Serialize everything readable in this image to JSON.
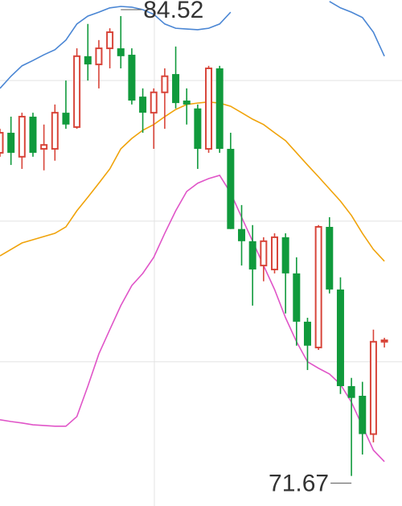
{
  "chart_data": {
    "type": "candlestick",
    "categories": [
      null,
      null,
      null,
      null,
      null,
      null,
      null,
      null,
      null,
      null,
      null,
      null,
      null,
      null,
      null,
      null,
      null,
      null,
      null,
      null,
      null,
      null,
      null,
      null,
      null,
      null,
      null,
      null,
      null,
      null,
      null,
      null,
      null,
      null,
      null,
      null
    ],
    "open": [
      80.7,
      81.26,
      80.59,
      81.71,
      80.81,
      80.81,
      81.82,
      81.42,
      83.4,
      83.17,
      83.62,
      83.62,
      83.44,
      82.27,
      81.82,
      82.39,
      82.9,
      82.16,
      81.94,
      80.81,
      83.06,
      80.81,
      78.57,
      78.23,
      77.55,
      77.44,
      78.34,
      77.33,
      75.98,
      75.26,
      78.63,
      76.88,
      74.18,
      73.91,
      72.84,
      75.42
    ],
    "high": [
      81.37,
      81.71,
      81.82,
      81.82,
      81.49,
      82.05,
      82.72,
      83.62,
      84.3,
      83.85,
      84.18,
      84.52,
      83.62,
      82.5,
      82.5,
      83.06,
      83.67,
      82.5,
      82.05,
      83.13,
      83.13,
      81.26,
      79.24,
      78.68,
      78.34,
      78.45,
      78.45,
      77.78,
      76.09,
      78.68,
      78.9,
      77.22,
      74.41,
      74.3,
      75.76,
      75.53
    ],
    "low": [
      80.59,
      80.36,
      80.25,
      80.59,
      80.21,
      80.48,
      81.37,
      81.37,
      82.72,
      82.5,
      83.06,
      83.06,
      82.05,
      81.26,
      80.81,
      81.37,
      81.94,
      81.49,
      80.25,
      80.7,
      80.7,
      78.57,
      77.55,
      76.43,
      77.11,
      77.33,
      76.21,
      75.31,
      74.63,
      75.19,
      76.77,
      73.96,
      71.67,
      72.27,
      72.61,
      75.26
    ],
    "close": [
      81.26,
      80.7,
      81.71,
      80.7,
      80.92,
      81.82,
      81.49,
      83.4,
      83.17,
      83.62,
      84.07,
      83.4,
      82.16,
      81.82,
      82.39,
      82.84,
      82.09,
      82.05,
      80.81,
      83.06,
      80.81,
      78.57,
      78.23,
      77.44,
      78.23,
      78.34,
      77.33,
      75.98,
      75.31,
      78.63,
      76.88,
      74.18,
      73.85,
      72.84,
      75.42,
      75.46
    ],
    "up_color": "#d8453a",
    "down_color": "#109a3c",
    "series": [
      {
        "color": "#4a86d4",
        "values": [
          82.5,
          82.84,
          83.13,
          83.28,
          83.44,
          83.58,
          83.85,
          84.3,
          84.52,
          84.63,
          84.75,
          84.79,
          84.77,
          84.7,
          84.57,
          84.3,
          84.18,
          84.16,
          84.14,
          84.18,
          84.3,
          84.63,
          null,
          null,
          null,
          null,
          null,
          null,
          null,
          null,
          84.93,
          84.75,
          84.63,
          84.48,
          84.07,
          83.4
        ]
      },
      {
        "color": "#f0a30a",
        "values": [
          77.82,
          78.0,
          78.18,
          78.27,
          78.36,
          78.45,
          78.63,
          79.08,
          79.46,
          79.85,
          80.25,
          80.81,
          81.1,
          81.33,
          81.49,
          81.71,
          81.91,
          82.05,
          82.09,
          82.12,
          82.09,
          82.0,
          81.82,
          81.64,
          81.49,
          81.26,
          81.04,
          80.7,
          80.36,
          80.03,
          79.69,
          79.35,
          78.95,
          78.45,
          78.0,
          77.67
        ]
      },
      {
        "color": "#e055c8",
        "values": [
          73.24,
          73.19,
          73.15,
          73.1,
          73.08,
          73.06,
          73.06,
          73.33,
          74.18,
          75.08,
          75.76,
          76.43,
          76.99,
          77.33,
          77.78,
          78.45,
          79.08,
          79.62,
          79.85,
          79.98,
          80.07,
          79.58,
          78.9,
          78.23,
          77.55,
          76.88,
          76.09,
          75.42,
          74.86,
          74.68,
          74.52,
          74.23,
          73.73,
          73.06,
          72.39,
          72.07
        ]
      }
    ],
    "ylim": [
      70.83,
      84.97
    ],
    "yticks": [
      82.72,
      78.79,
      74.86
    ],
    "grid": true,
    "annotations": [
      {
        "text": "84.52"
      },
      {
        "text": "71.67"
      }
    ]
  }
}
